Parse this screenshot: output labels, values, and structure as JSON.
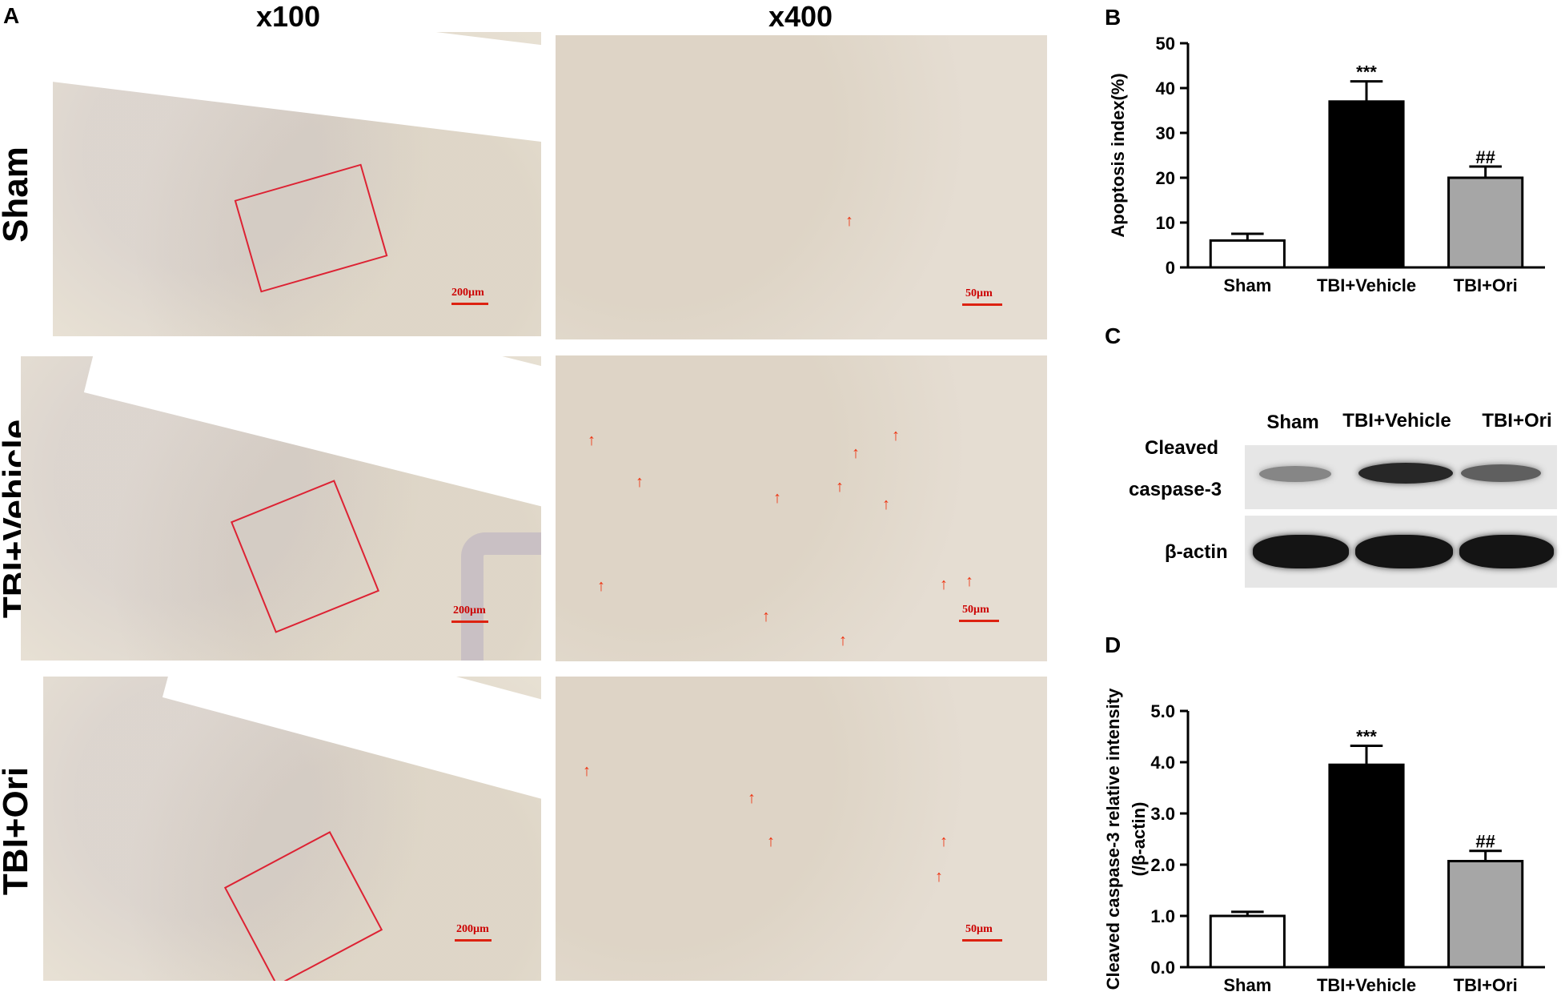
{
  "panels": {
    "A": "A",
    "B": "B",
    "C": "C",
    "D": "D"
  },
  "micrographs": {
    "col_low": "x100",
    "col_high": "x400",
    "rows": [
      "Sham",
      "TBI+Vehicle",
      "TBI+Ori"
    ],
    "scale_low": "200µm",
    "scale_high": "50µm"
  },
  "western": {
    "columns": [
      "Sham",
      "TBI+Vehicle",
      "TBI+Ori"
    ],
    "band1_label_line1": "Cleaved",
    "band1_label_line2": "caspase-3",
    "band2_label": "β-actin",
    "band1_intensity": [
      0.35,
      0.85,
      0.55
    ],
    "band2_intensity": [
      0.95,
      0.95,
      0.95
    ]
  },
  "chart_data": [
    {
      "panel": "B",
      "type": "bar",
      "categories": [
        "Sham",
        "TBI+Vehicle",
        "TBI+Ori"
      ],
      "values": [
        6,
        37,
        20
      ],
      "errors": [
        1.5,
        4.5,
        2.5
      ],
      "annotations": [
        "",
        "***",
        "##"
      ],
      "fills": [
        "#ffffff",
        "#000000",
        "#a6a6a6"
      ],
      "ylabel": "Apoptosis index(%)",
      "ylim": [
        0,
        50
      ],
      "yticks": [
        0,
        10,
        20,
        30,
        40,
        50
      ],
      "ytick_labels": [
        "0",
        "10",
        "20",
        "30",
        "40",
        "50"
      ]
    },
    {
      "panel": "D",
      "type": "bar",
      "categories": [
        "Sham",
        "TBI+Vehicle",
        "TBI+Ori"
      ],
      "values": [
        1.0,
        3.95,
        2.07
      ],
      "errors": [
        0.08,
        0.37,
        0.2
      ],
      "annotations": [
        "",
        "***",
        "##"
      ],
      "fills": [
        "#ffffff",
        "#000000",
        "#a6a6a6"
      ],
      "ylabel_line1": "Cleaved caspase-3 relative intensity",
      "ylabel_line2": "(/β-actin)",
      "ylim": [
        0,
        5
      ],
      "yticks": [
        0,
        1,
        2,
        3,
        4,
        5
      ],
      "ytick_labels": [
        "0.0",
        "1.0",
        "2.0",
        "3.0",
        "4.0",
        "5.0"
      ]
    }
  ]
}
